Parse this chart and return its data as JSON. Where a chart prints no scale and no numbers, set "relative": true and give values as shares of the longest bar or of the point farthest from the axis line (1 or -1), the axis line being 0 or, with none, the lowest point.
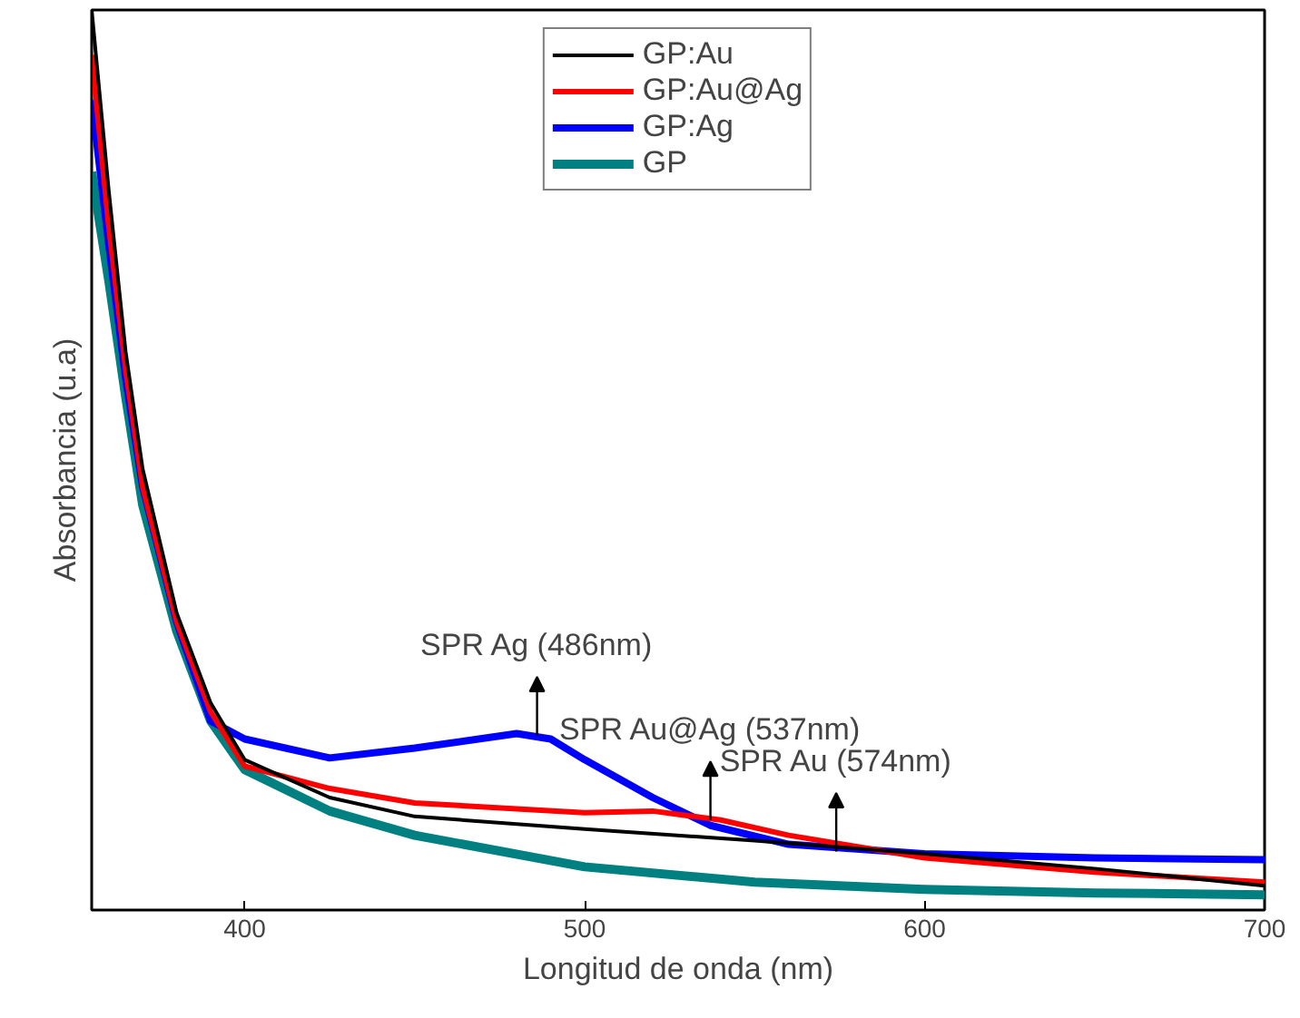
{
  "chart_data": {
    "type": "line",
    "relative": true,
    "xlabel": "Longitud de onda (nm)",
    "ylabel": "Absorbancia (u.a)",
    "xlim": [
      355,
      700
    ],
    "xticks": [
      400,
      500,
      600,
      700
    ],
    "grid": false,
    "legend": "top",
    "line_style": "solid",
    "marker": "none",
    "series": [
      {
        "name": "GP:Au",
        "color": "#000000",
        "x": [
          355,
          360,
          365,
          370,
          380,
          390,
          400,
          425,
          450,
          500,
          550,
          600,
          650,
          700
        ],
        "values": [
          1.0,
          0.8,
          0.62,
          0.49,
          0.33,
          0.23,
          0.167,
          0.125,
          0.104,
          0.09,
          0.077,
          0.0625,
          0.046,
          0.027
        ]
      },
      {
        "name": "GP:Au@Ag",
        "color": "#ff0000",
        "x": [
          355,
          360,
          365,
          370,
          380,
          390,
          400,
          425,
          450,
          500,
          520,
          540,
          560,
          600,
          650,
          700
        ],
        "values": [
          0.95,
          0.76,
          0.6,
          0.47,
          0.32,
          0.22,
          0.16,
          0.135,
          0.119,
          0.108,
          0.11,
          0.1,
          0.083,
          0.058,
          0.042,
          0.031
        ]
      },
      {
        "name": "GP:Ag",
        "color": "#0000ff",
        "x": [
          355,
          360,
          365,
          370,
          380,
          390,
          400,
          425,
          450,
          480,
          490,
          500,
          520,
          537,
          560,
          600,
          650,
          700
        ],
        "values": [
          0.9,
          0.74,
          0.59,
          0.47,
          0.32,
          0.21,
          0.19,
          0.169,
          0.18,
          0.196,
          0.19,
          0.167,
          0.125,
          0.094,
          0.073,
          0.0625,
          0.058,
          0.056
        ]
      },
      {
        "name": "GP",
        "color": "#008080",
        "x": [
          355,
          360,
          365,
          370,
          380,
          390,
          400,
          425,
          450,
          500,
          550,
          600,
          650,
          700
        ],
        "values": [
          0.82,
          0.7,
          0.57,
          0.45,
          0.31,
          0.21,
          0.156,
          0.11,
          0.083,
          0.048,
          0.031,
          0.023,
          0.019,
          0.017
        ]
      }
    ],
    "annotations": [
      {
        "text": "SPR Ag (486nm)",
        "x": 486,
        "y": 0.194
      },
      {
        "text": "SPR Au@Ag (537nm)",
        "x": 537,
        "y": 0.1
      },
      {
        "text": "SPR Au (574nm)",
        "x": 574,
        "y": 0.065
      }
    ]
  }
}
